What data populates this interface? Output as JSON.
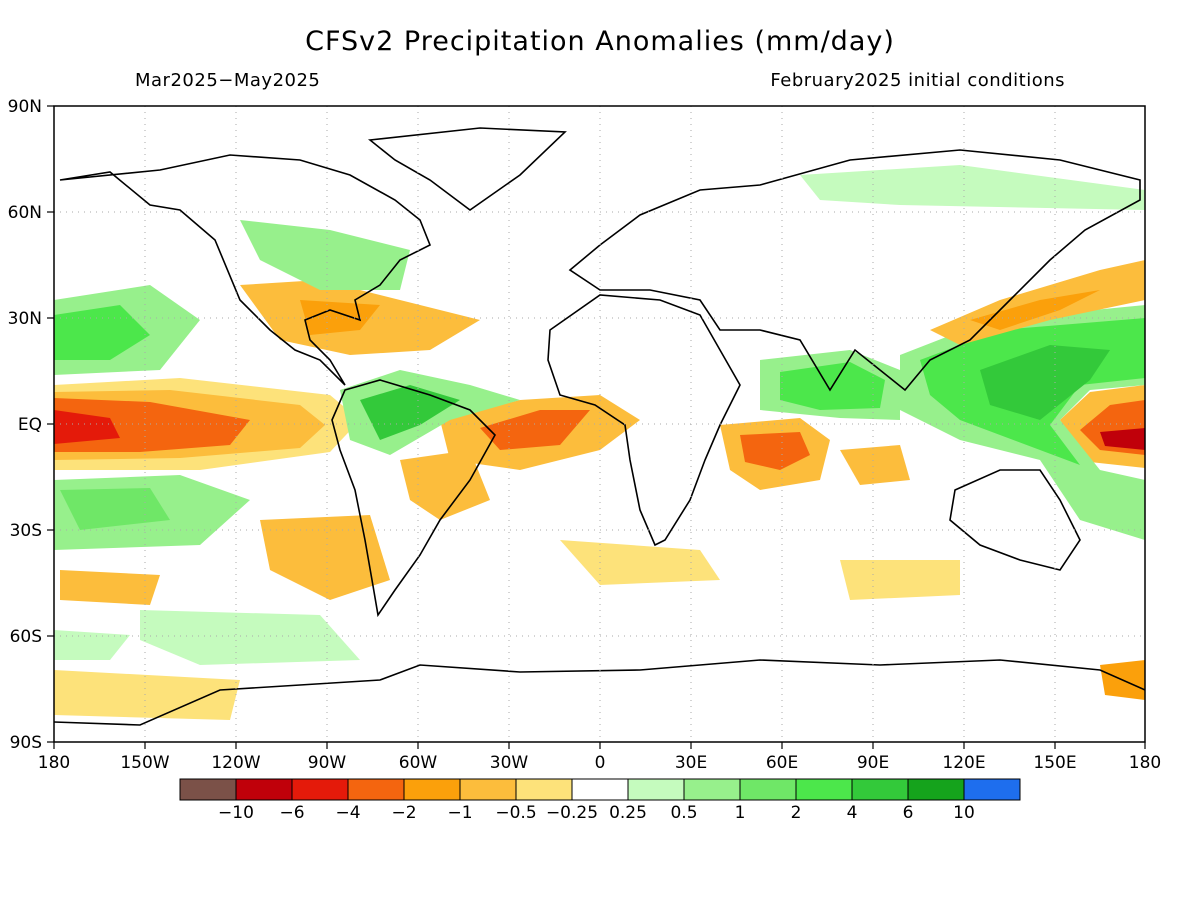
{
  "header": {
    "title": "CFSv2 Precipitation Anomalies (mm/day)",
    "period": "Mar2025−May2025",
    "initial_conditions": "February2025 initial conditions"
  },
  "axes": {
    "lat_labels": [
      "90N",
      "60N",
      "30N",
      "EQ",
      "30S",
      "60S",
      "90S"
    ],
    "lon_labels": [
      "180",
      "150W",
      "120W",
      "90W",
      "60W",
      "30W",
      "0",
      "30E",
      "60E",
      "90E",
      "120E",
      "150E",
      "180"
    ]
  },
  "colorbar": {
    "colors": [
      "#7b5148",
      "#c0000a",
      "#e41a0a",
      "#f4650f",
      "#fba00b",
      "#fcbd3c",
      "#fde27a",
      "#ffffff",
      "#c5fbbe",
      "#97f08c",
      "#6fe767",
      "#4ce74b",
      "#33c93a",
      "#15a31c",
      "#1e6eee"
    ],
    "labels": [
      "−10",
      "−6",
      "−4",
      "−2",
      "−1",
      "−0.5",
      "−0.25",
      "0.25",
      "0.5",
      "1",
      "2",
      "4",
      "6",
      "10"
    ]
  },
  "anomaly_regions": [
    {
      "name": "central-pacific-equatorial-dry",
      "level": "-2"
    },
    {
      "name": "west-pacific-warm-pool-wet",
      "level": "4"
    },
    {
      "name": "indian-ocean-wet",
      "level": "2"
    },
    {
      "name": "amazon-wet",
      "level": "4"
    },
    {
      "name": "equatorial-atlantic-dry",
      "level": "-1"
    },
    {
      "name": "north-pacific-subtropical-wet",
      "level": "1"
    },
    {
      "name": "south-pacific-wet",
      "level": "1"
    },
    {
      "name": "southern-ocean-wet",
      "level": "0.5"
    },
    {
      "name": "gulf-mexico-dry",
      "level": "-1"
    },
    {
      "name": "east-asia-dry",
      "level": "-1"
    },
    {
      "name": "east-africa-west-indian-ocean-dry",
      "level": "-1"
    }
  ]
}
